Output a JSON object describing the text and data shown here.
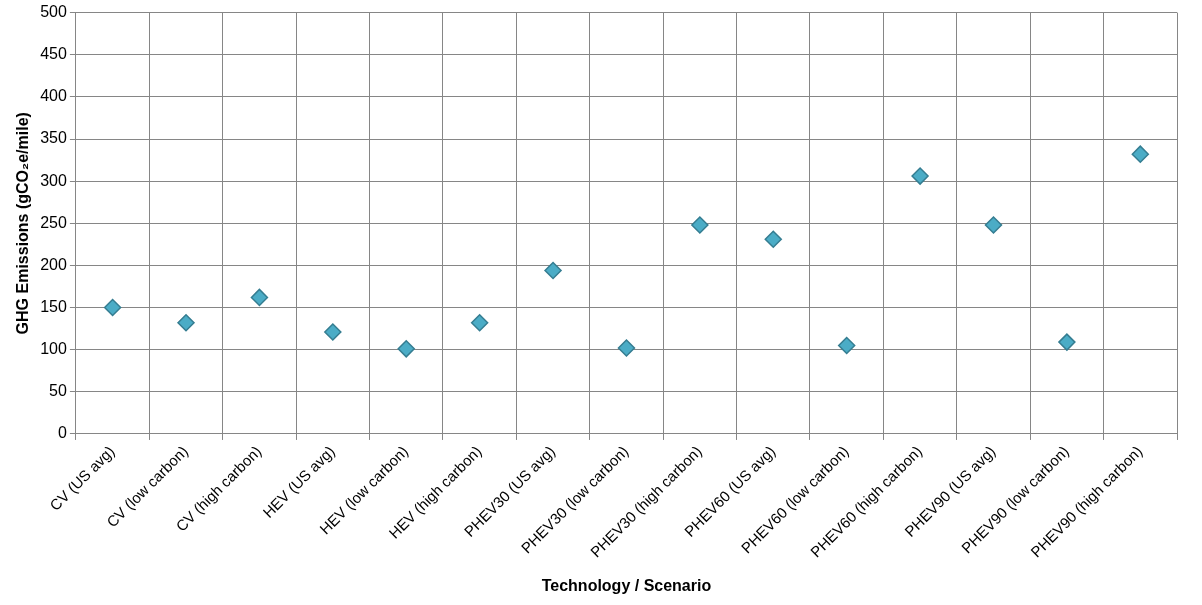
{
  "chart_data": {
    "type": "scatter",
    "xlabel": "Technology / Scenario",
    "ylabel": "GHG Emissions (gCO₂e/mile)",
    "categories": [
      "CV (US avg)",
      "CV (low carbon)",
      "CV (high carbon)",
      "HEV (US avg)",
      "HEV (low carbon)",
      "HEV (high carbon)",
      "PHEV30 (US avg)",
      "PHEV30 (low carbon)",
      "PHEV30 (high carbon)",
      "PHEV60 (US avg)",
      "PHEV60 (low carbon)",
      "PHEV60 (high carbon)",
      "PHEV90 (US avg)",
      "PHEV90 (low carbon)",
      "PHEV90 (high carbon)"
    ],
    "series": [
      {
        "color": "#4bacc6",
        "values": [
          150,
          132,
          162,
          121,
          101,
          132,
          194,
          102,
          248,
          231,
          105,
          306,
          248,
          109,
          332
        ]
      }
    ],
    "ylim": [
      0,
      500
    ],
    "yticks": [
      0,
      50,
      100,
      150,
      200,
      250,
      300,
      350,
      400,
      450,
      500
    ],
    "grid": true,
    "marker": "diamond"
  }
}
